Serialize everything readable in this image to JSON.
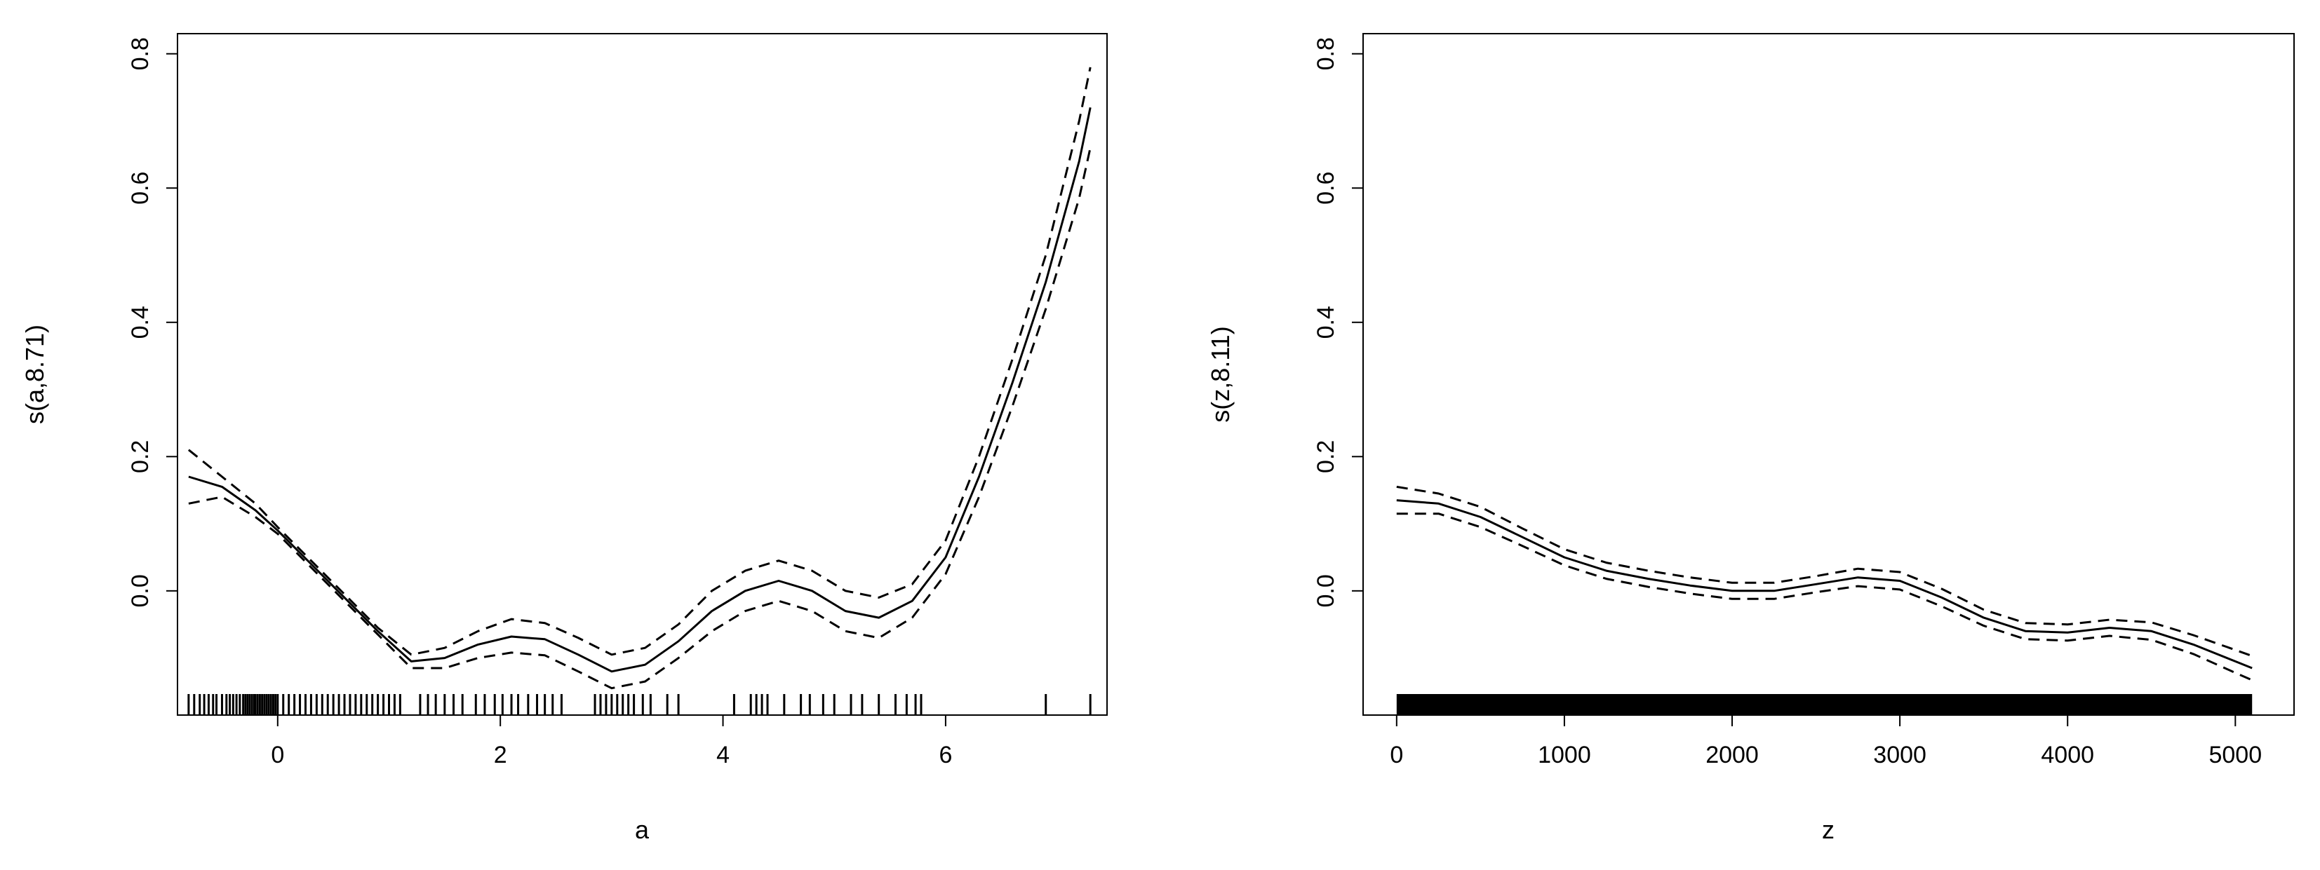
{
  "chart_data": [
    {
      "type": "line",
      "xlabel": "a",
      "ylabel": "s(a,8.71)",
      "xlim": [
        -0.9,
        7.45
      ],
      "ylim": [
        -0.185,
        0.83
      ],
      "xticks": [
        0,
        2,
        4,
        6
      ],
      "yticks": [
        0.0,
        0.2,
        0.4,
        0.6,
        0.8
      ],
      "xtick_labels": [
        "0",
        "2",
        "4",
        "6"
      ],
      "ytick_labels": [
        "0.0",
        "0.2",
        "0.4",
        "0.6",
        "0.8"
      ],
      "grid": false,
      "legend": "none",
      "series": [
        {
          "style": "solid",
          "x": [
            -0.8,
            -0.5,
            -0.2,
            0.0,
            0.3,
            0.6,
            0.9,
            1.2,
            1.5,
            1.8,
            2.1,
            2.4,
            2.7,
            3.0,
            3.3,
            3.6,
            3.9,
            4.2,
            4.5,
            4.8,
            5.1,
            5.4,
            5.7,
            6.0,
            6.3,
            6.6,
            6.9,
            7.2,
            7.3
          ],
          "y": [
            0.17,
            0.155,
            0.12,
            0.09,
            0.04,
            -0.01,
            -0.06,
            -0.105,
            -0.1,
            -0.08,
            -0.068,
            -0.072,
            -0.095,
            -0.12,
            -0.11,
            -0.075,
            -0.03,
            0.0,
            0.015,
            0.0,
            -0.03,
            -0.04,
            -0.015,
            0.05,
            0.17,
            0.31,
            0.46,
            0.64,
            0.72
          ]
        },
        {
          "style": "dashed",
          "x": [
            -0.8,
            -0.5,
            -0.2,
            0.0,
            0.3,
            0.6,
            0.9,
            1.2,
            1.5,
            1.8,
            2.1,
            2.4,
            2.7,
            3.0,
            3.3,
            3.6,
            3.9,
            4.2,
            4.5,
            4.8,
            5.1,
            5.4,
            5.7,
            6.0,
            6.3,
            6.6,
            6.9,
            7.2,
            7.3
          ],
          "y": [
            0.21,
            0.17,
            0.13,
            0.095,
            0.045,
            -0.005,
            -0.055,
            -0.095,
            -0.085,
            -0.06,
            -0.042,
            -0.048,
            -0.07,
            -0.095,
            -0.085,
            -0.05,
            0.0,
            0.03,
            0.045,
            0.03,
            0.0,
            -0.01,
            0.01,
            0.075,
            0.2,
            0.345,
            0.5,
            0.7,
            0.78
          ]
        },
        {
          "style": "dashed",
          "x": [
            -0.8,
            -0.5,
            -0.2,
            0.0,
            0.3,
            0.6,
            0.9,
            1.2,
            1.5,
            1.8,
            2.1,
            2.4,
            2.7,
            3.0,
            3.3,
            3.6,
            3.9,
            4.2,
            4.5,
            4.8,
            5.1,
            5.4,
            5.7,
            6.0,
            6.3,
            6.6,
            6.9,
            7.2,
            7.3
          ],
          "y": [
            0.13,
            0.14,
            0.11,
            0.085,
            0.035,
            -0.015,
            -0.065,
            -0.115,
            -0.115,
            -0.1,
            -0.092,
            -0.096,
            -0.12,
            -0.145,
            -0.135,
            -0.1,
            -0.06,
            -0.03,
            -0.015,
            -0.03,
            -0.06,
            -0.07,
            -0.04,
            0.025,
            0.14,
            0.275,
            0.42,
            0.585,
            0.66
          ]
        }
      ],
      "rug": [
        -0.8,
        -0.75,
        -0.7,
        -0.66,
        -0.62,
        -0.58,
        -0.55,
        -0.5,
        -0.46,
        -0.43,
        -0.4,
        -0.37,
        -0.34,
        -0.31,
        -0.29,
        -0.27,
        -0.25,
        -0.23,
        -0.21,
        -0.2,
        -0.18,
        -0.16,
        -0.14,
        -0.12,
        -0.1,
        -0.08,
        -0.06,
        -0.04,
        -0.02,
        0.0,
        0.05,
        0.1,
        0.15,
        0.2,
        0.25,
        0.3,
        0.35,
        0.4,
        0.45,
        0.5,
        0.55,
        0.6,
        0.65,
        0.7,
        0.75,
        0.8,
        0.85,
        0.9,
        0.95,
        1.0,
        1.05,
        1.1,
        1.28,
        1.35,
        1.42,
        1.5,
        1.58,
        1.66,
        1.78,
        1.86,
        1.95,
        2.02,
        2.1,
        2.16,
        2.25,
        2.33,
        2.4,
        2.47,
        2.55,
        2.85,
        2.9,
        2.95,
        3.0,
        3.05,
        3.1,
        3.15,
        3.2,
        3.28,
        3.35,
        3.5,
        3.6,
        4.1,
        4.25,
        4.3,
        4.35,
        4.4,
        4.55,
        4.7,
        4.78,
        4.9,
        5.0,
        5.15,
        5.25,
        5.4,
        5.55,
        5.65,
        5.73,
        5.78,
        6.9,
        7.3
      ]
    },
    {
      "type": "line",
      "xlabel": "z",
      "ylabel": "s(z,8.11)",
      "xlim": [
        -200,
        5350
      ],
      "ylim": [
        -0.185,
        0.83
      ],
      "xticks": [
        0,
        1000,
        2000,
        3000,
        4000,
        5000
      ],
      "yticks": [
        0.0,
        0.2,
        0.4,
        0.6,
        0.8
      ],
      "xtick_labels": [
        "0",
        "1000",
        "2000",
        "3000",
        "4000",
        "5000"
      ],
      "ytick_labels": [
        "0.0",
        "0.2",
        "0.4",
        "0.6",
        "0.8"
      ],
      "grid": false,
      "legend": "none",
      "series": [
        {
          "style": "solid",
          "x": [
            0,
            250,
            500,
            750,
            1000,
            1250,
            1500,
            1750,
            2000,
            2250,
            2500,
            2750,
            3000,
            3250,
            3500,
            3750,
            4000,
            4250,
            4500,
            4750,
            5000,
            5100
          ],
          "y": [
            0.135,
            0.13,
            0.11,
            0.08,
            0.05,
            0.03,
            0.018,
            0.008,
            0.0,
            0.0,
            0.01,
            0.02,
            0.015,
            -0.01,
            -0.04,
            -0.06,
            -0.062,
            -0.055,
            -0.06,
            -0.08,
            -0.105,
            -0.115
          ]
        },
        {
          "style": "dashed",
          "x": [
            0,
            250,
            500,
            750,
            1000,
            1250,
            1500,
            1750,
            2000,
            2250,
            2500,
            2750,
            3000,
            3250,
            3500,
            3750,
            4000,
            4250,
            4500,
            4750,
            5000,
            5100
          ],
          "y": [
            0.155,
            0.145,
            0.125,
            0.093,
            0.062,
            0.042,
            0.03,
            0.02,
            0.012,
            0.012,
            0.022,
            0.033,
            0.028,
            0.003,
            -0.028,
            -0.048,
            -0.05,
            -0.043,
            -0.047,
            -0.066,
            -0.088,
            -0.097
          ]
        },
        {
          "style": "dashed",
          "x": [
            0,
            250,
            500,
            750,
            1000,
            1250,
            1500,
            1750,
            2000,
            2250,
            2500,
            2750,
            3000,
            3250,
            3500,
            3750,
            4000,
            4250,
            4500,
            4750,
            5000,
            5100
          ],
          "y": [
            0.115,
            0.115,
            0.095,
            0.067,
            0.038,
            0.018,
            0.006,
            -0.004,
            -0.012,
            -0.012,
            -0.002,
            0.007,
            0.002,
            -0.023,
            -0.052,
            -0.072,
            -0.074,
            -0.067,
            -0.073,
            -0.094,
            -0.122,
            -0.133
          ]
        }
      ],
      "rug_range": [
        0,
        5100
      ]
    }
  ]
}
